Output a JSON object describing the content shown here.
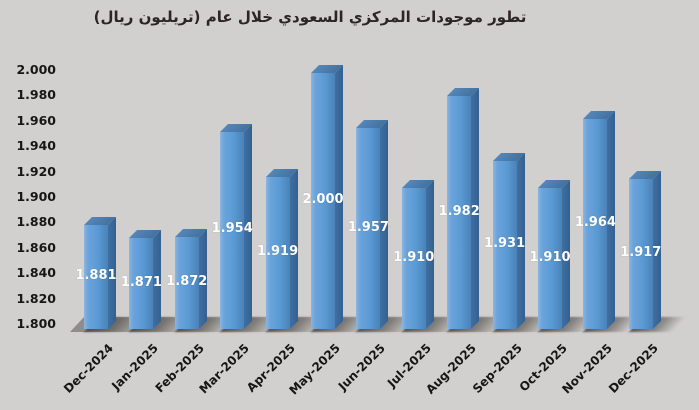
{
  "title": "تطور موجودات المركزي السعودي خلال عام (تريليون ريال)",
  "colors": {
    "background": "#d2d0ce",
    "title_text": "#2b2523",
    "axis_text": "#161616",
    "bar_face": "#5b9bd5",
    "bar_face_light": "#8ab5e2",
    "bar_face_dark": "#4a82b8",
    "bar_side": "#3f70a4",
    "bar_side_dark": "#33608e",
    "bar_top": "#5486b8",
    "floor": "#a09d99",
    "data_label": "#ffffff"
  },
  "chart_data": {
    "type": "bar",
    "style": "3d-column",
    "title": "تطور موجودات المركزي السعودي خلال عام (تريليون ريال)",
    "categories": [
      "Dec-2024",
      "Jan-2025",
      "Feb-2025",
      "Mar-2025",
      "Apr-2025",
      "May-2025",
      "Jun-2025",
      "Jul-2025",
      "Aug-2025",
      "Sep-2025",
      "Oct-2025",
      "Nov-2025",
      "Dec-2025"
    ],
    "values": [
      1.881,
      1.871,
      1.872,
      1.954,
      1.919,
      2.0,
      1.957,
      1.91,
      1.982,
      1.931,
      1.91,
      1.964,
      1.917
    ],
    "value_labels": [
      "1.881",
      "1.871",
      "1.872",
      "1.954",
      "1.919",
      "2.000",
      "1.957",
      "1.910",
      "1.982",
      "1.931",
      "1.910",
      "1.964",
      "1.917"
    ],
    "ytick_labels": [
      "2.000",
      "1.980",
      "1.960",
      "1.940",
      "1.920",
      "1.900",
      "1.880",
      "1.860",
      "1.840",
      "1.820",
      "1.800"
    ],
    "ylim": [
      1.8,
      2.0
    ],
    "xlabel": "",
    "ylabel": "",
    "grid": false,
    "legend": false,
    "data_labels_position": "center",
    "data_labels_color": "#ffffff"
  }
}
